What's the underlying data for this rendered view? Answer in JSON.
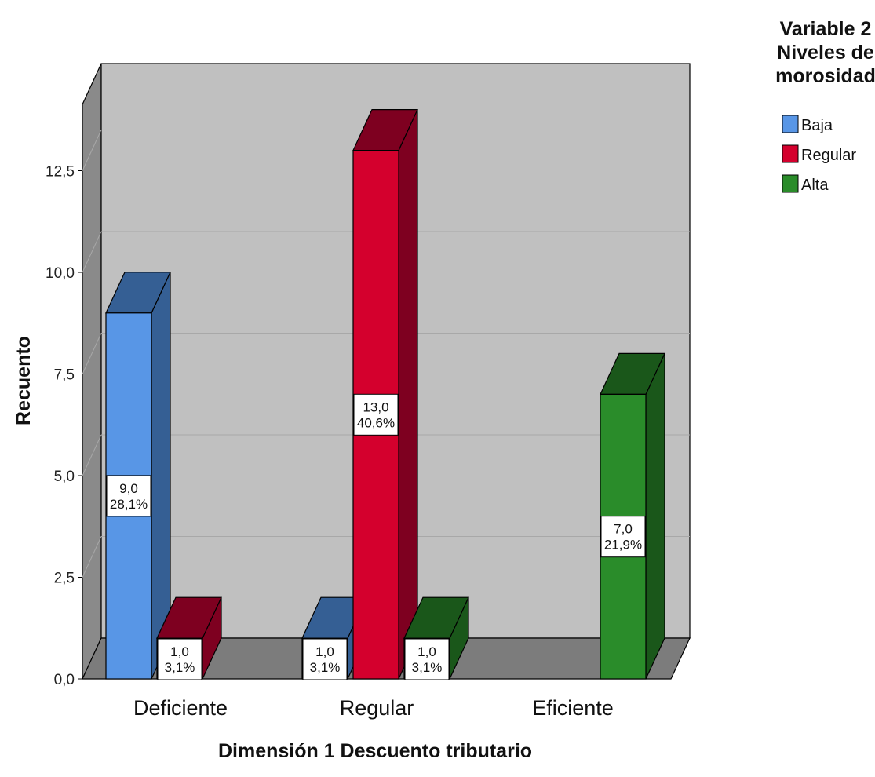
{
  "chart_data": {
    "type": "bar",
    "title": "",
    "xlabel": "Dimensión 1 Descuento tributario",
    "ylabel": "Recuento",
    "categories": [
      "Deficiente",
      "Regular",
      "Eficiente"
    ],
    "series": [
      {
        "name": "Baja",
        "values": [
          9.0,
          1.0,
          0
        ]
      },
      {
        "name": "Regular",
        "values": [
          1.0,
          13.0,
          0
        ]
      },
      {
        "name": "Alta",
        "values": [
          0,
          1.0,
          7.0
        ]
      }
    ],
    "data_labels": [
      [
        "9,0",
        "28,1%"
      ],
      [
        "1,0",
        "3,1%"
      ],
      [
        "1,0",
        "3,1%"
      ],
      [
        "13,0",
        "40,6%"
      ],
      [
        "1,0",
        "3,1%"
      ],
      [
        "7,0",
        "21,9%"
      ]
    ],
    "ylim": [
      0,
      15
    ],
    "yticks": [
      "0,0",
      "2,5",
      "5,0",
      "7,5",
      "10,0",
      "12,5"
    ],
    "grid": true,
    "legend": {
      "title_lines": [
        "Variable 2",
        "Niveles de",
        "morosidad"
      ],
      "entries": [
        "Baja",
        "Regular",
        "Alta"
      ],
      "placement": "top-right"
    },
    "colors": {
      "series_front": [
        "#5896e6",
        "#d4002d",
        "#2a8c2a"
      ],
      "series_side": [
        "#355f94",
        "#7e0020",
        "#1a571a"
      ],
      "series_top": [
        "#355f94",
        "#7e0020",
        "#1a571a"
      ],
      "wall": "#c0c0c0",
      "wall_side": "#8a8a8a",
      "floor": "#7c7c7c",
      "gridline": "#a8a8a8"
    }
  }
}
